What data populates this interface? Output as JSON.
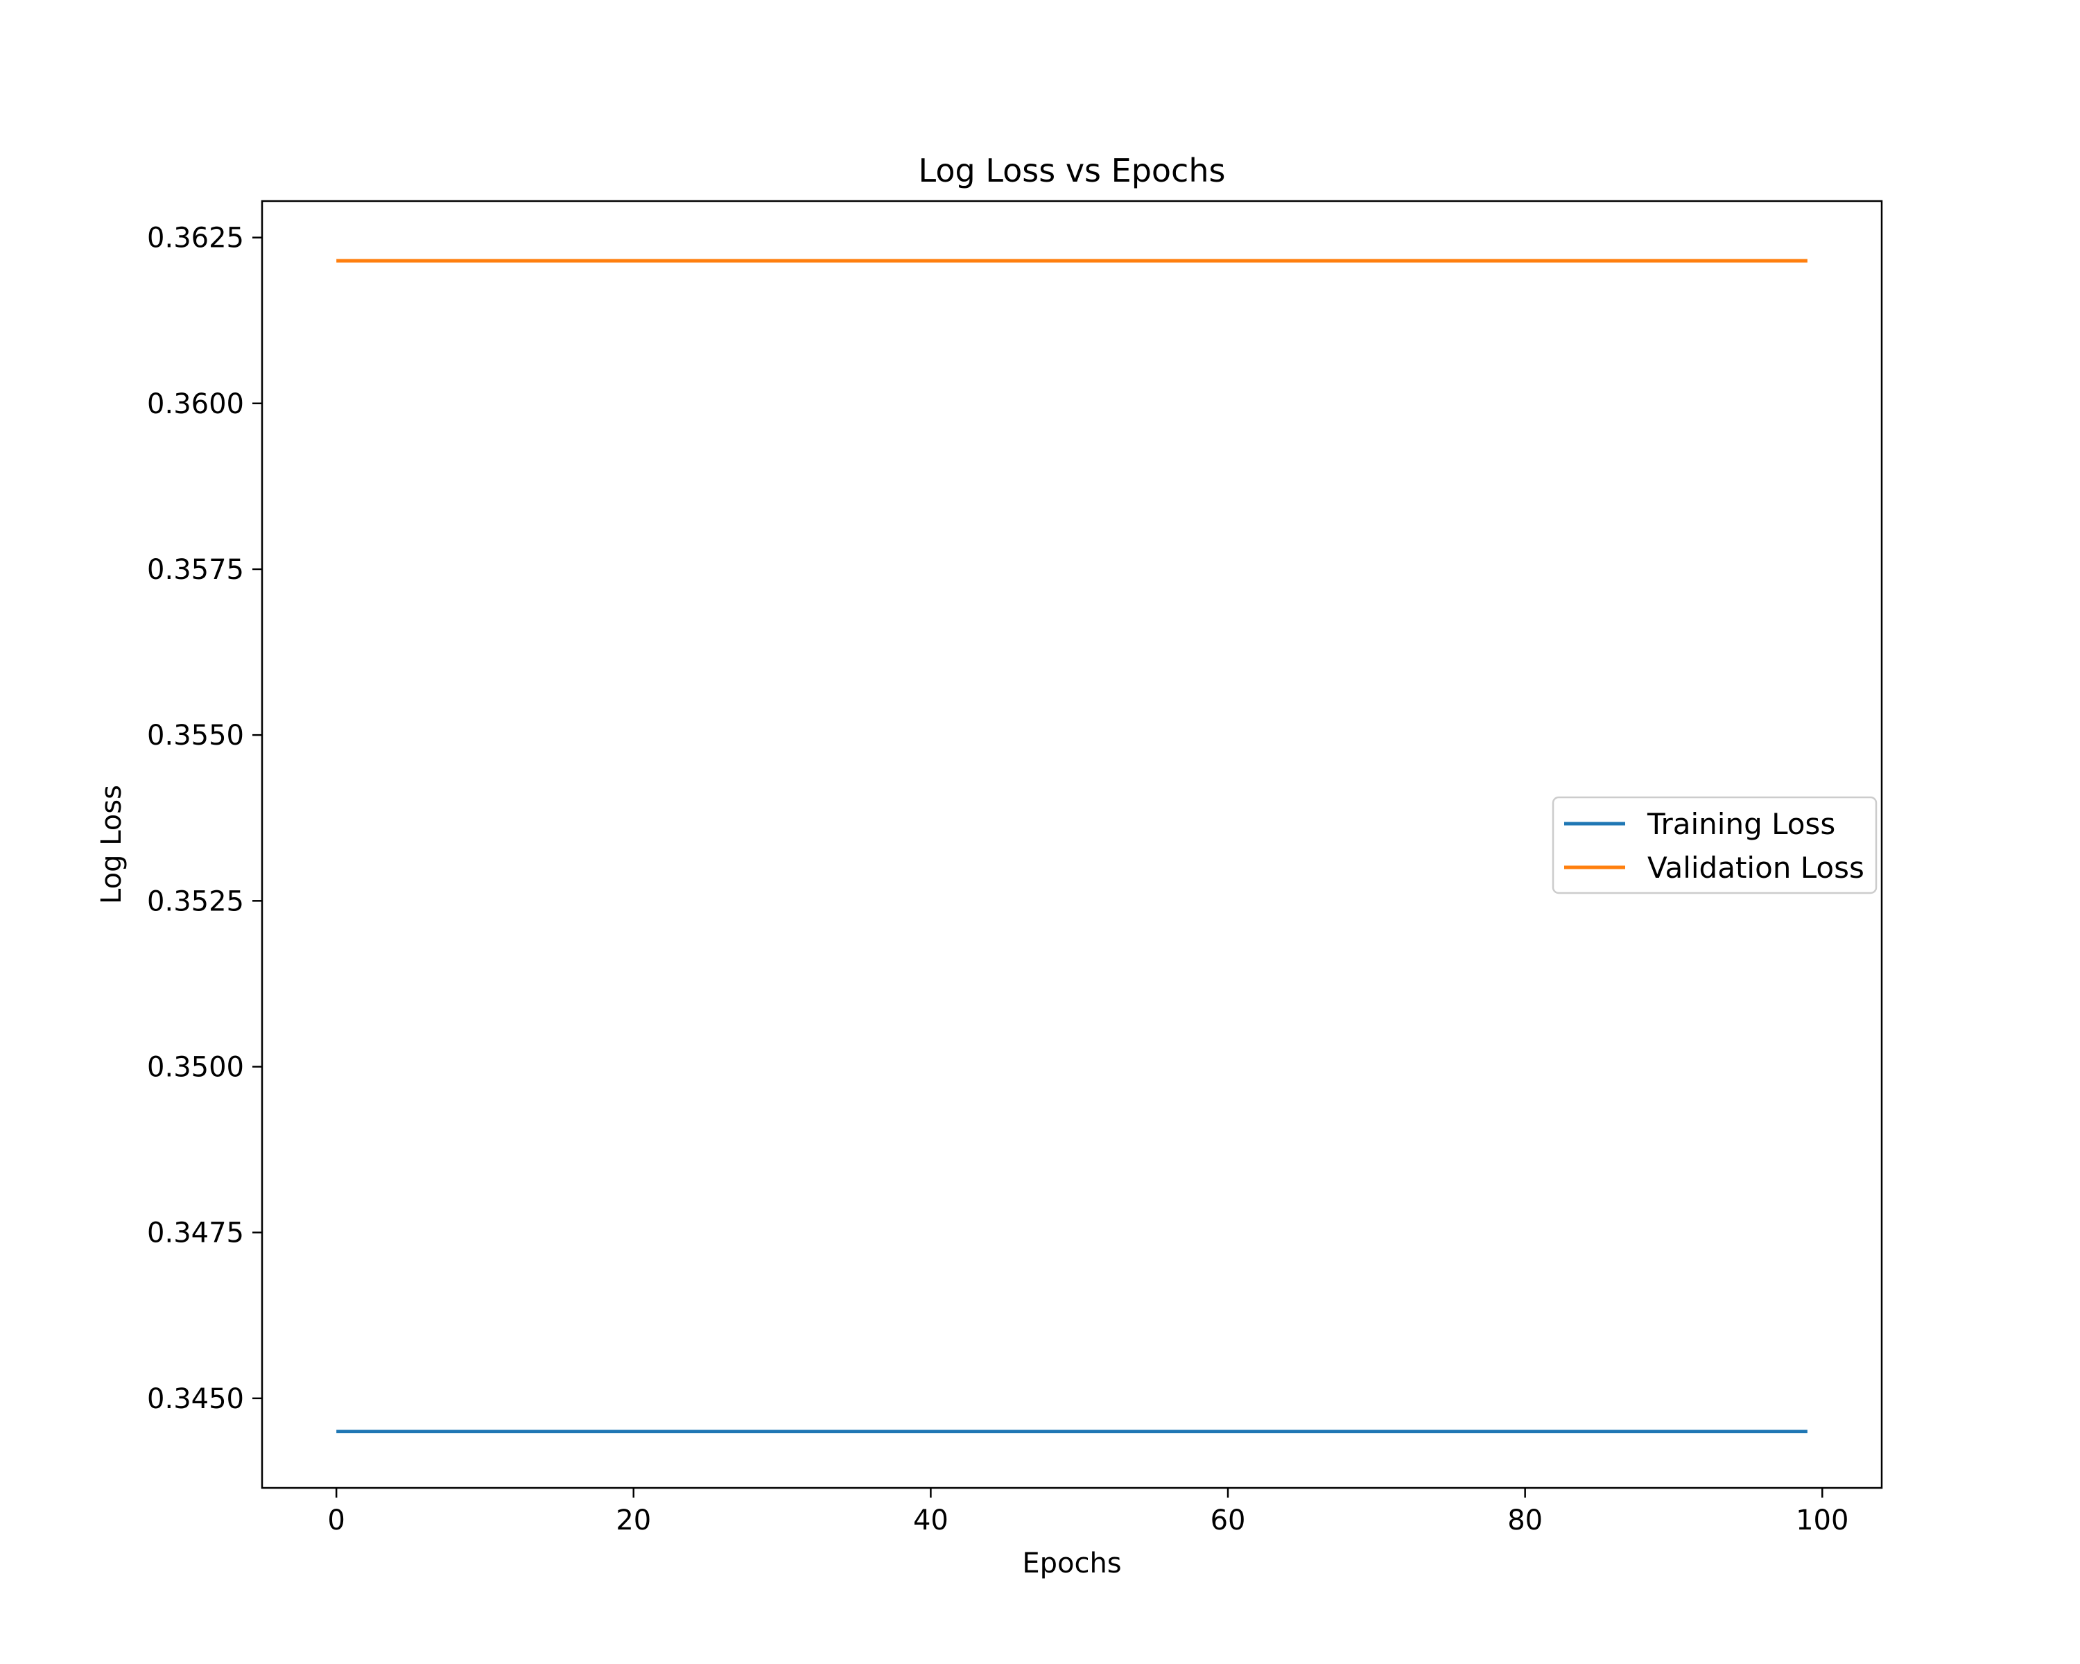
{
  "chart_data": {
    "type": "line",
    "title": "Log Loss vs Epochs",
    "xlabel": "Epochs",
    "ylabel": "Log Loss",
    "xlim": [
      -5,
      104
    ],
    "ylim": [
      0.34365,
      0.36305
    ],
    "x_ticks": [
      0,
      20,
      40,
      60,
      80,
      100
    ],
    "x_tick_labels": [
      "0",
      "20",
      "40",
      "60",
      "80",
      "100"
    ],
    "y_ticks": [
      0.345,
      0.3475,
      0.35,
      0.3525,
      0.355,
      0.3575,
      0.36,
      0.3625
    ],
    "y_tick_labels": [
      "0.3450",
      "0.3475",
      "0.3500",
      "0.3525",
      "0.3550",
      "0.3575",
      "0.3600",
      "0.3625"
    ],
    "grid": false,
    "legend_position": "center-right",
    "series": [
      {
        "name": "Training Loss",
        "color": "#1f77b4",
        "x": [
          0,
          99
        ],
        "y": [
          0.3445,
          0.3445
        ]
      },
      {
        "name": "Validation Loss",
        "color": "#ff7f0e",
        "x": [
          0,
          99
        ],
        "y": [
          0.36215,
          0.36215
        ]
      }
    ]
  }
}
